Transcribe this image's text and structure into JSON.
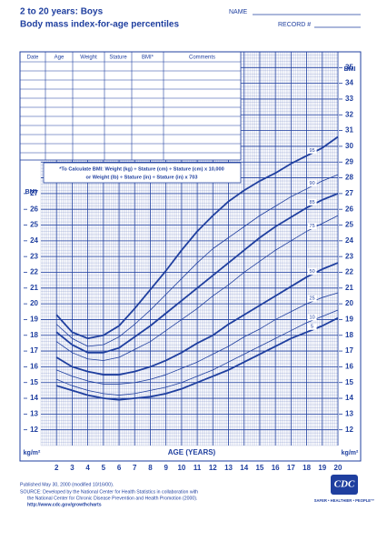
{
  "header": {
    "title": "2 to 20 years: Boys",
    "subtitle": "Body mass index-for-age percentiles",
    "name_label": "NAME",
    "record_label": "RECORD #"
  },
  "table": {
    "columns": [
      "Date",
      "Age",
      "Weight",
      "Stature",
      "BMI*",
      "Comments"
    ]
  },
  "formula": {
    "line1": "*To Calculate BMI: Weight (kg) ÷ Stature (cm) ÷ Stature (cm) x 10,000",
    "line2": "or Weight (lb) ÷ Stature (in) ÷ Stature (in) x 703"
  },
  "footer": {
    "published": "Published May 30, 2000 (modified 10/16/00).",
    "source1": "SOURCE: Developed by the National Center for Health Statistics in collaboration with",
    "source2": "the National Center for Chronic Disease Prevention and Health Promotion (2000).",
    "url": "http://www.cdc.gov/growthcharts",
    "logo": "CDC",
    "tagline": "SAFER • HEALTHIER • PEOPLE™"
  },
  "chart_data": {
    "type": "line",
    "x_label": "AGE (YEARS)",
    "y_label": "BMI",
    "y_unit": "kg/m²",
    "color": "#1f3f9f",
    "grid": true,
    "x": [
      2,
      3,
      4,
      5,
      6,
      7,
      8,
      9,
      10,
      11,
      12,
      13,
      14,
      15,
      16,
      17,
      18,
      19,
      20
    ],
    "xlim": [
      1,
      20
    ],
    "xticks": [
      2,
      3,
      4,
      5,
      6,
      7,
      8,
      9,
      10,
      11,
      12,
      13,
      14,
      15,
      16,
      17,
      18,
      19,
      20
    ],
    "ylim": [
      11,
      36
    ],
    "yticks": [
      12,
      13,
      14,
      15,
      16,
      17,
      18,
      19,
      20,
      21,
      22,
      23,
      24,
      25,
      26,
      27
    ],
    "y2lim": [
      11,
      36
    ],
    "y2ticks": [
      12,
      13,
      14,
      15,
      16,
      17,
      18,
      19,
      20,
      21,
      22,
      23,
      24,
      25,
      26,
      27,
      28,
      29,
      30,
      31,
      32,
      33,
      34,
      35
    ],
    "series": [
      {
        "name": "95",
        "line_width": 1.8,
        "values": [
          19.3,
          18.2,
          17.8,
          18.0,
          18.6,
          19.7,
          20.9,
          22.1,
          23.4,
          24.6,
          25.6,
          26.5,
          27.2,
          27.8,
          28.3,
          28.9,
          29.4,
          29.9,
          30.6
        ]
      },
      {
        "name": "90",
        "line_width": 0.8,
        "values": [
          18.7,
          17.8,
          17.3,
          17.4,
          17.9,
          18.7,
          19.6,
          20.6,
          21.6,
          22.6,
          23.5,
          24.2,
          24.9,
          25.6,
          26.2,
          26.8,
          27.3,
          27.8,
          28.2
        ]
      },
      {
        "name": "85",
        "line_width": 1.8,
        "values": [
          18.2,
          17.4,
          16.9,
          16.9,
          17.2,
          17.9,
          18.6,
          19.4,
          20.2,
          21.0,
          21.8,
          22.6,
          23.4,
          24.2,
          24.9,
          25.5,
          26.1,
          26.6,
          27.0
        ]
      },
      {
        "name": "75",
        "line_width": 0.8,
        "values": [
          17.6,
          16.9,
          16.5,
          16.4,
          16.6,
          17.1,
          17.6,
          18.3,
          19.0,
          19.7,
          20.5,
          21.2,
          22.0,
          22.7,
          23.4,
          24.0,
          24.6,
          25.1,
          25.6
        ]
      },
      {
        "name": "50",
        "line_width": 1.8,
        "values": [
          16.6,
          16.0,
          15.7,
          15.5,
          15.5,
          15.7,
          16.0,
          16.4,
          16.9,
          17.5,
          18.0,
          18.7,
          19.3,
          19.9,
          20.5,
          21.1,
          21.7,
          22.2,
          22.6
        ]
      },
      {
        "name": "25",
        "line_width": 0.8,
        "values": [
          15.8,
          15.4,
          15.1,
          14.9,
          14.9,
          15.0,
          15.2,
          15.5,
          15.9,
          16.3,
          16.8,
          17.3,
          17.9,
          18.4,
          19.0,
          19.5,
          20.0,
          20.4,
          20.7
        ]
      },
      {
        "name": "10",
        "line_width": 0.8,
        "values": [
          15.2,
          14.8,
          14.5,
          14.3,
          14.2,
          14.3,
          14.5,
          14.7,
          15.0,
          15.4,
          15.8,
          16.3,
          16.8,
          17.3,
          17.8,
          18.3,
          18.8,
          19.2,
          19.6
        ]
      },
      {
        "name": "5",
        "line_width": 1.8,
        "values": [
          14.8,
          14.5,
          14.2,
          14.0,
          13.9,
          14.0,
          14.1,
          14.3,
          14.6,
          15.0,
          15.4,
          15.8,
          16.3,
          16.8,
          17.3,
          17.8,
          18.2,
          18.6,
          19.1
        ]
      }
    ]
  }
}
